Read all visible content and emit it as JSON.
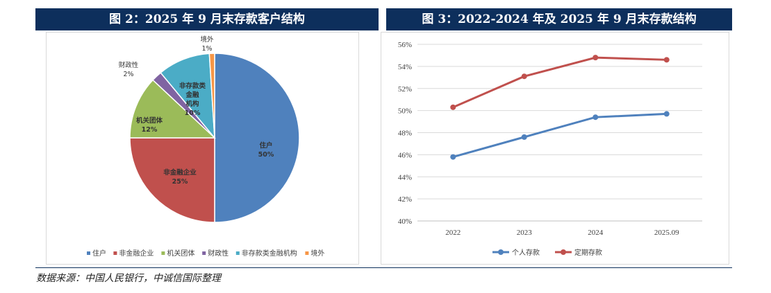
{
  "left_title": "图 2：2025 年 9 月末存款客户结构",
  "right_title": "图 3：2022-2024 年及 2025 年 9 月末存款结构",
  "source": "数据来源：中国人民银行，中诚信国际整理",
  "chart_data": [
    {
      "type": "pie",
      "title": "图 2：2025 年 9 月末存款客户结构",
      "slices": [
        {
          "name": "住户",
          "value": 50,
          "label": "50%",
          "color": "#4f81bd"
        },
        {
          "name": "非金融企业",
          "value": 25,
          "label": "25%",
          "color": "#c0504d"
        },
        {
          "name": "机关团体",
          "value": 12,
          "label": "12%",
          "color": "#9bbb59"
        },
        {
          "name": "财政性",
          "value": 2,
          "label": "2%",
          "color": "#8064a2"
        },
        {
          "name": "非存款类金融机构",
          "value": 10,
          "label": "10%",
          "color": "#4bacc6"
        },
        {
          "name": "境外",
          "value": 1,
          "label": "1%",
          "color": "#f79646"
        }
      ],
      "legend_placement": "bottom"
    },
    {
      "type": "line",
      "title": "图 3：2022-2024 年及 2025 年 9 月末存款结构",
      "categories": [
        "2022",
        "2023",
        "2024",
        "2025.09"
      ],
      "series": [
        {
          "name": "个人存款",
          "values": [
            45.8,
            47.6,
            49.4,
            49.7
          ],
          "color": "#4f81bd"
        },
        {
          "name": "定期存款",
          "values": [
            50.3,
            53.1,
            54.8,
            54.6
          ],
          "color": "#c0504d"
        }
      ],
      "ylim": [
        40,
        56
      ],
      "yticks": [
        "40%",
        "42%",
        "44%",
        "46%",
        "48%",
        "50%",
        "52%",
        "54%",
        "56%"
      ],
      "grid": true,
      "legend_placement": "bottom"
    }
  ]
}
